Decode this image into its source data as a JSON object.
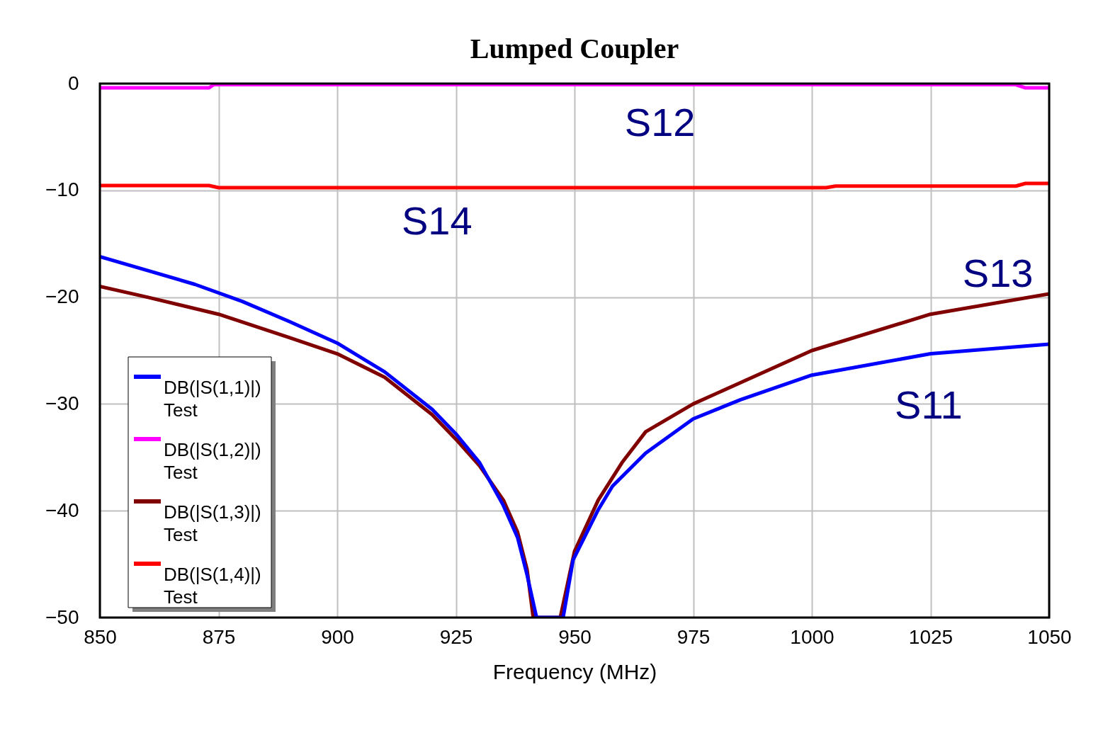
{
  "chart_data": {
    "type": "line",
    "title": "Lumped Coupler",
    "xlabel": "Frequency (MHz)",
    "xlim": [
      850,
      1050
    ],
    "xticks": [
      850,
      875,
      900,
      925,
      950,
      975,
      1000,
      1025,
      1050
    ],
    "ylim": [
      -50,
      0
    ],
    "yticks": [
      -50,
      -40,
      -30,
      -20,
      -10,
      0
    ],
    "grid": true,
    "legend": "bottom left",
    "line_style": "solid",
    "marker": "none",
    "series": [
      {
        "name": "DB(|S(1,1)|)\nTest",
        "color": "#0000ff",
        "x": [
          850,
          860,
          870,
          880,
          890,
          900,
          910,
          920,
          925,
          930,
          935,
          938,
          940,
          942,
          947.6,
          949.7,
          955,
          958,
          965,
          975,
          985,
          1000,
          1025,
          1050
        ],
        "values": [
          -16.2,
          -17.5,
          -18.8,
          -20.4,
          -22.3,
          -24.3,
          -27.0,
          -30.5,
          -32.8,
          -35.5,
          -39.5,
          -42.5,
          -46,
          -50,
          -50,
          -44.6,
          -39.9,
          -37.7,
          -34.6,
          -31.4,
          -29.6,
          -27.3,
          -25.3,
          -24.4
        ]
      },
      {
        "name": "DB(|S(1,2)|)\nTest",
        "color": "#ff00ff",
        "x": [
          850,
          873,
          874,
          1043,
          1045,
          1050
        ],
        "values": [
          -0.4,
          -0.4,
          -0.1,
          -0.1,
          -0.4,
          -0.4
        ]
      },
      {
        "name": "DB(|S(1,3)|)\nTest",
        "color": "#800000",
        "x": [
          850,
          860,
          875,
          890,
          900,
          910,
          920,
          925,
          930,
          935,
          938,
          940,
          941.3,
          947.0,
          950,
          955,
          960,
          965,
          975,
          985,
          1000,
          1025,
          1050
        ],
        "values": [
          -19.0,
          -20.0,
          -21.6,
          -23.8,
          -25.3,
          -27.5,
          -31.0,
          -33.3,
          -35.8,
          -39.0,
          -42,
          -45.5,
          -50,
          -50,
          -43.8,
          -39,
          -35.5,
          -32.6,
          -30,
          -28,
          -25,
          -21.6,
          -19.7
        ]
      },
      {
        "name": "DB(|S(1,4)|)\nTest",
        "color": "#ff0000",
        "x": [
          850,
          873,
          875,
          1003,
          1005,
          1043,
          1045,
          1050
        ],
        "values": [
          -9.55,
          -9.55,
          -9.75,
          -9.75,
          -9.6,
          -9.6,
          -9.35,
          -9.35
        ]
      }
    ],
    "annotations": [
      "S12",
      "S14",
      "S13",
      "S11"
    ]
  }
}
